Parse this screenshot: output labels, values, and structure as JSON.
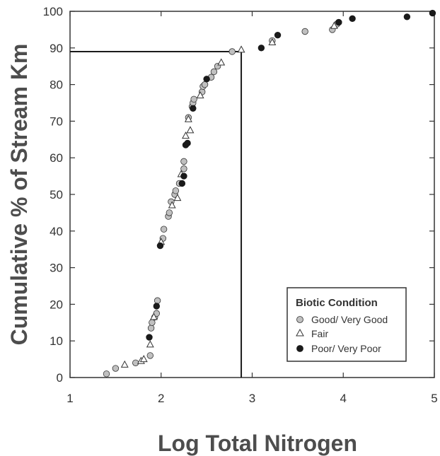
{
  "chart_data": {
    "type": "scatter",
    "title": "",
    "xlabel": "Log Total Nitrogen",
    "ylabel": "Cumulative % of Stream Km",
    "xlim": [
      1,
      5
    ],
    "ylim": [
      0,
      100
    ],
    "x_ticks": [
      "1",
      "2",
      "3",
      "4",
      "5"
    ],
    "y_ticks": [
      "0",
      "10",
      "20",
      "30",
      "40",
      "50",
      "60",
      "70",
      "80",
      "90",
      "100"
    ],
    "grid": false,
    "legend": {
      "title": "Biotic Condition",
      "position": "lower-right"
    },
    "reference_line": {
      "x": 2.88,
      "y": 89
    },
    "series": [
      {
        "name": "Good/ Very Good",
        "marker": "circle-gray",
        "color": "#c0c0c0",
        "points": [
          [
            1.4,
            1
          ],
          [
            1.5,
            2.5
          ],
          [
            1.72,
            4
          ],
          [
            1.88,
            6
          ],
          [
            1.89,
            13.5
          ],
          [
            1.9,
            15
          ],
          [
            1.93,
            16.5
          ],
          [
            1.95,
            17.5
          ],
          [
            1.96,
            21
          ],
          [
            2.02,
            38
          ],
          [
            2.03,
            40.5
          ],
          [
            2.08,
            44
          ],
          [
            2.09,
            45
          ],
          [
            2.11,
            48
          ],
          [
            2.15,
            50
          ],
          [
            2.16,
            51
          ],
          [
            2.2,
            53
          ],
          [
            2.25,
            57
          ],
          [
            2.25,
            59
          ],
          [
            2.3,
            71
          ],
          [
            2.34,
            74
          ],
          [
            2.35,
            75
          ],
          [
            2.36,
            76
          ],
          [
            2.45,
            78
          ],
          [
            2.46,
            79.5
          ],
          [
            2.48,
            80
          ],
          [
            2.55,
            82
          ],
          [
            2.58,
            83.5
          ],
          [
            2.62,
            85
          ],
          [
            2.78,
            89
          ],
          [
            3.22,
            92
          ],
          [
            3.58,
            94.5
          ],
          [
            3.88,
            95
          ],
          [
            3.93,
            96.5
          ],
          [
            3.95,
            97
          ]
        ]
      },
      {
        "name": "Fair",
        "marker": "triangle-open",
        "color": "#ffffff",
        "points": [
          [
            1.6,
            3.5
          ],
          [
            1.78,
            4.5
          ],
          [
            1.81,
            5
          ],
          [
            1.88,
            9
          ],
          [
            1.92,
            16.5
          ],
          [
            2.0,
            37
          ],
          [
            2.12,
            47
          ],
          [
            2.18,
            49
          ],
          [
            2.22,
            55.5
          ],
          [
            2.27,
            66
          ],
          [
            2.32,
            67.5
          ],
          [
            2.3,
            70.5
          ],
          [
            2.43,
            77
          ],
          [
            2.66,
            86
          ],
          [
            2.88,
            89.5
          ],
          [
            3.22,
            91.5
          ],
          [
            3.9,
            96
          ]
        ]
      },
      {
        "name": "Poor/ Very Poor",
        "marker": "circle-black",
        "color": "#1a1a1a",
        "points": [
          [
            1.87,
            11
          ],
          [
            1.95,
            19.5
          ],
          [
            1.99,
            36
          ],
          [
            2.23,
            53
          ],
          [
            2.25,
            55
          ],
          [
            2.27,
            63.5
          ],
          [
            2.29,
            64
          ],
          [
            2.35,
            73.5
          ],
          [
            2.5,
            81.5
          ],
          [
            3.1,
            90
          ],
          [
            3.28,
            93.5
          ],
          [
            3.95,
            97
          ],
          [
            4.1,
            98
          ],
          [
            4.7,
            98.5
          ],
          [
            4.98,
            99.5
          ]
        ]
      }
    ]
  }
}
